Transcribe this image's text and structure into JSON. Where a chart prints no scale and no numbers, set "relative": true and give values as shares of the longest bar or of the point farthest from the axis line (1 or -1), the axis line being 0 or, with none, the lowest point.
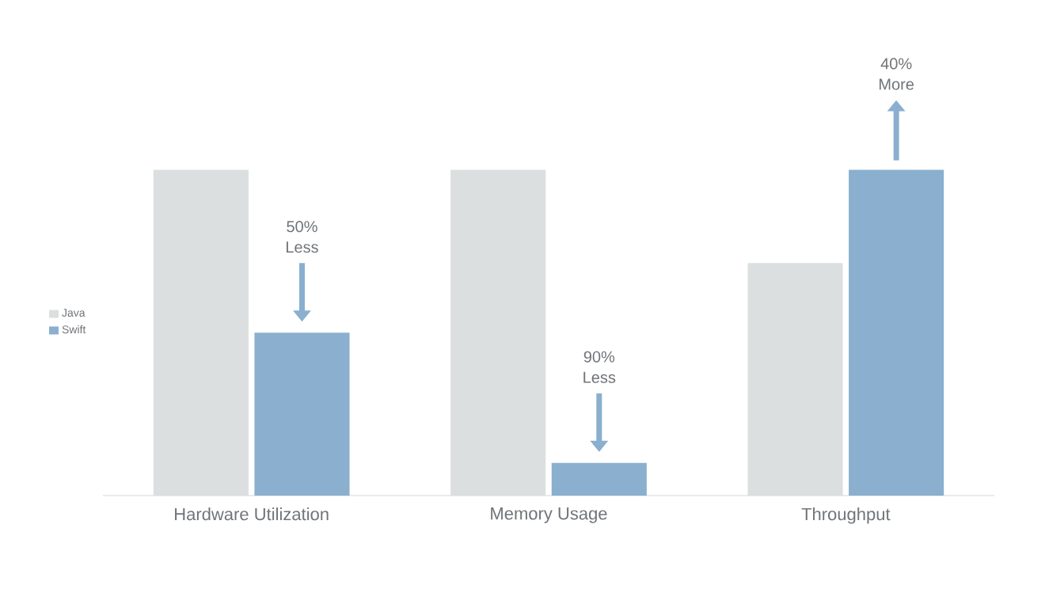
{
  "chart_data": {
    "type": "bar",
    "relative": true,
    "categories": [
      "Hardware Utilization",
      "Memory Usage",
      "Throughput"
    ],
    "series": [
      {
        "name": "Java",
        "color": "#dcdfe0",
        "values": [
          1,
          1,
          0.714
        ]
      },
      {
        "name": "Swift",
        "color": "#8aafcf",
        "values": [
          0.5,
          0.1,
          1
        ]
      }
    ],
    "legend": "left",
    "annotations": [
      "50% Less",
      "90% Less",
      "40% More"
    ]
  }
}
